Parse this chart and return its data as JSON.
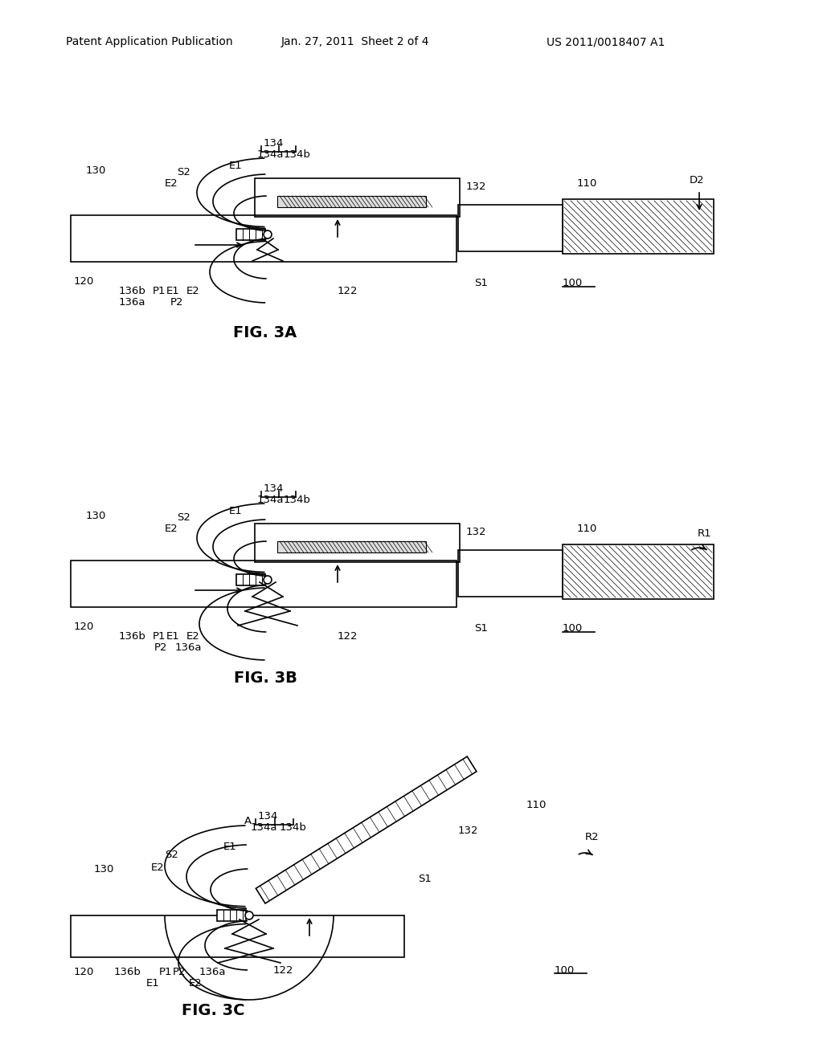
{
  "bg_color": "#ffffff",
  "text_color": "#000000",
  "header_left": "Patent Application Publication",
  "header_mid": "Jan. 27, 2011  Sheet 2 of 4",
  "header_right": "US 2011/0018407 A1",
  "fig3a_label": "FIG. 3A",
  "fig3b_label": "FIG. 3B",
  "fig3c_label": "FIG. 3C"
}
